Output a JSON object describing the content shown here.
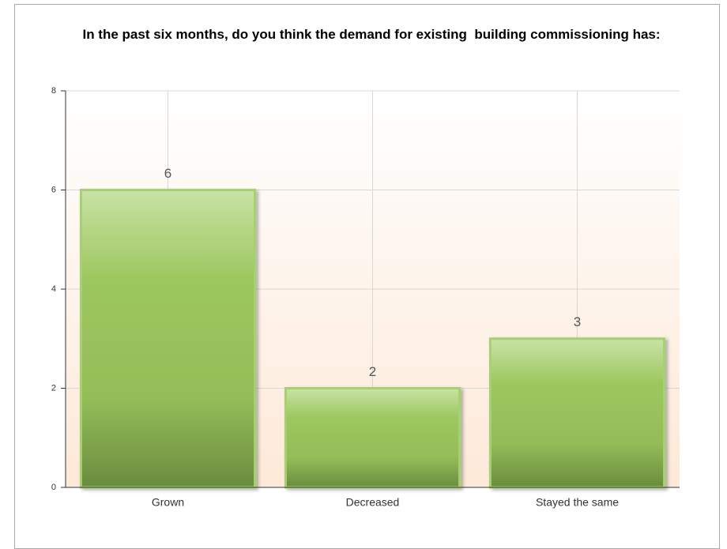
{
  "chart_data": {
    "type": "bar",
    "title": "In the past six months, do you think the demand for existing  building commissioning has:",
    "categories": [
      "Grown",
      "Decreased",
      "Stayed the same"
    ],
    "values": [
      6,
      2,
      3
    ],
    "color": "#9dc75e",
    "ylim": [
      0,
      8
    ],
    "yticks": [
      0,
      2,
      4,
      6,
      8
    ],
    "grid": true
  }
}
